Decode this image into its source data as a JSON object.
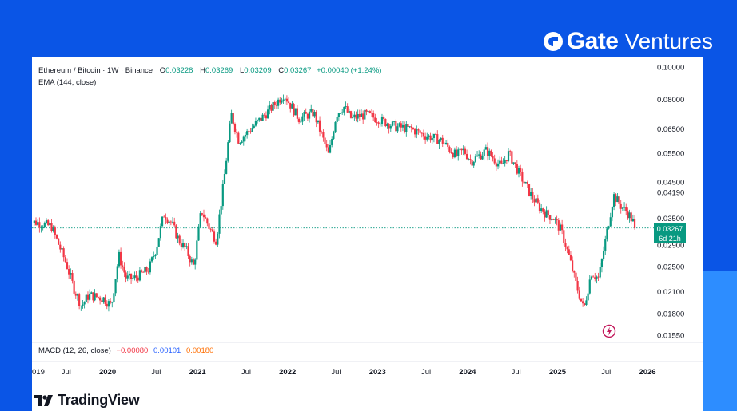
{
  "brand": {
    "name": "Gate",
    "sub": "Ventures"
  },
  "header": {
    "symbol": "Ethereum / Bitcoin · 1W · Binance",
    "open_label": "O",
    "open": "0.03228",
    "high_label": "H",
    "high": "0.03269",
    "low_label": "L",
    "low": "0.03209",
    "close_label": "C",
    "close": "0.03267",
    "change": "+0.00040 (+1.24%)"
  },
  "indicators": {
    "ema": "EMA (144, close)",
    "macd_label": "MACD (12, 26, close)",
    "macd_values": [
      "−0.00080",
      "0.00101",
      "0.00180"
    ]
  },
  "price_tag": {
    "price": "0.03267",
    "countdown": "6d 21h"
  },
  "footer": {
    "logo_text": "TradingView"
  },
  "colors": {
    "up": "#089981",
    "down": "#f23645",
    "background": "#0a55e6",
    "accent": "#2d8dff"
  },
  "chart_data": {
    "type": "candlestick",
    "scale": "log",
    "ylim": [
      0.015,
      0.104
    ],
    "yticks": [
      "0.10000",
      "0.08000",
      "0.06500",
      "0.05500",
      "0.04500",
      "0.04190",
      "0.03500",
      "0.02900",
      "0.02500",
      "0.02100",
      "0.01800",
      "0.01550"
    ],
    "xticks": [
      "019",
      "Jul",
      "2020",
      "Jul",
      "2021",
      "Jul",
      "2022",
      "Jul",
      "2023",
      "Jul",
      "2024",
      "Jul",
      "2025",
      "Jul",
      "2026"
    ],
    "current_price": 0.03267,
    "close_series": [
      {
        "date": "2019-03",
        "close": 0.034
      },
      {
        "date": "2019-05",
        "close": 0.033
      },
      {
        "date": "2019-07",
        "close": 0.0255
      },
      {
        "date": "2019-08",
        "close": 0.0215
      },
      {
        "date": "2019-09",
        "close": 0.019
      },
      {
        "date": "2019-10",
        "close": 0.0205
      },
      {
        "date": "2019-12",
        "close": 0.02
      },
      {
        "date": "2020-01",
        "close": 0.019
      },
      {
        "date": "2020-02",
        "close": 0.027
      },
      {
        "date": "2020-03",
        "close": 0.023
      },
      {
        "date": "2020-04",
        "close": 0.023
      },
      {
        "date": "2020-06",
        "close": 0.0245
      },
      {
        "date": "2020-07",
        "close": 0.0285
      },
      {
        "date": "2020-08",
        "close": 0.036
      },
      {
        "date": "2020-09",
        "close": 0.034
      },
      {
        "date": "2020-10",
        "close": 0.03
      },
      {
        "date": "2020-11",
        "close": 0.028
      },
      {
        "date": "2020-12",
        "close": 0.025
      },
      {
        "date": "2021-01",
        "close": 0.037
      },
      {
        "date": "2021-02",
        "close": 0.033
      },
      {
        "date": "2021-03",
        "close": 0.03
      },
      {
        "date": "2021-04",
        "close": 0.045
      },
      {
        "date": "2021-05",
        "close": 0.072
      },
      {
        "date": "2021-06",
        "close": 0.06
      },
      {
        "date": "2021-07",
        "close": 0.063
      },
      {
        "date": "2021-09",
        "close": 0.07
      },
      {
        "date": "2021-11",
        "close": 0.078
      },
      {
        "date": "2021-12",
        "close": 0.083
      },
      {
        "date": "2022-02",
        "close": 0.07
      },
      {
        "date": "2022-04",
        "close": 0.073
      },
      {
        "date": "2022-06",
        "close": 0.054
      },
      {
        "date": "2022-07",
        "close": 0.072
      },
      {
        "date": "2022-08",
        "close": 0.076
      },
      {
        "date": "2022-09",
        "close": 0.07
      },
      {
        "date": "2022-11",
        "close": 0.072
      },
      {
        "date": "2023-01",
        "close": 0.069
      },
      {
        "date": "2023-03",
        "close": 0.066
      },
      {
        "date": "2023-05",
        "close": 0.065
      },
      {
        "date": "2023-07",
        "close": 0.062
      },
      {
        "date": "2023-09",
        "close": 0.06
      },
      {
        "date": "2023-11",
        "close": 0.054
      },
      {
        "date": "2023-12",
        "close": 0.056
      },
      {
        "date": "2024-01",
        "close": 0.052
      },
      {
        "date": "2024-03",
        "close": 0.056
      },
      {
        "date": "2024-05",
        "close": 0.05
      },
      {
        "date": "2024-06",
        "close": 0.055
      },
      {
        "date": "2024-08",
        "close": 0.045
      },
      {
        "date": "2024-09",
        "close": 0.041
      },
      {
        "date": "2024-10",
        "close": 0.038
      },
      {
        "date": "2024-11",
        "close": 0.036
      },
      {
        "date": "2024-12",
        "close": 0.035
      },
      {
        "date": "2025-01",
        "close": 0.032
      },
      {
        "date": "2025-02",
        "close": 0.027
      },
      {
        "date": "2025-03",
        "close": 0.022
      },
      {
        "date": "2025-04",
        "close": 0.0185
      },
      {
        "date": "2025-05",
        "close": 0.024
      },
      {
        "date": "2025-06",
        "close": 0.023
      },
      {
        "date": "2025-07",
        "close": 0.031
      },
      {
        "date": "2025-08",
        "close": 0.041
      },
      {
        "date": "2025-09",
        "close": 0.038
      },
      {
        "date": "2025-10",
        "close": 0.036
      },
      {
        "date": "2025-11",
        "close": 0.0327
      }
    ]
  }
}
